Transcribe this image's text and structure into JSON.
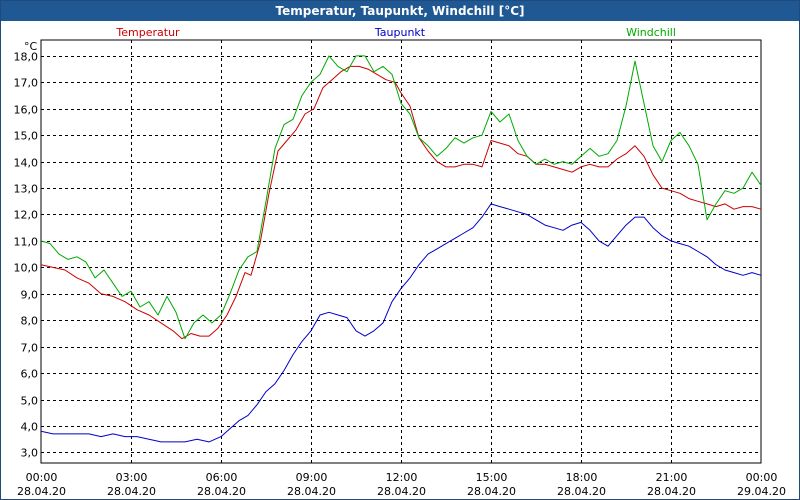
{
  "window": {
    "title": "Temperatur, Taupunkt, Windchill [°C]"
  },
  "chart_data": {
    "type": "line",
    "title": "Temperatur, Taupunkt, Windchill [°C]",
    "ylabel": "°C",
    "xlabel": "",
    "ylim": [
      2.6,
      18.6
    ],
    "xlim_hours": [
      0,
      24
    ],
    "grid": true,
    "legend_placement": "top",
    "y_ticks": [
      {
        "value": 3.0,
        "label": "3,0"
      },
      {
        "value": 4.0,
        "label": "4,0"
      },
      {
        "value": 5.0,
        "label": "5,0"
      },
      {
        "value": 6.0,
        "label": "6,0"
      },
      {
        "value": 7.0,
        "label": "7,0"
      },
      {
        "value": 8.0,
        "label": "8,0"
      },
      {
        "value": 9.0,
        "label": "9,0"
      },
      {
        "value": 10.0,
        "label": "10,0"
      },
      {
        "value": 11.0,
        "label": "11,0"
      },
      {
        "value": 12.0,
        "label": "12,0"
      },
      {
        "value": 13.0,
        "label": "13,0"
      },
      {
        "value": 14.0,
        "label": "14,0"
      },
      {
        "value": 15.0,
        "label": "15,0"
      },
      {
        "value": 16.0,
        "label": "16,0"
      },
      {
        "value": 17.0,
        "label": "17,0"
      },
      {
        "value": 18.0,
        "label": "18,0"
      }
    ],
    "x_ticks": [
      {
        "hour": 0,
        "time": "00:00",
        "date": "28.04.20"
      },
      {
        "hour": 3,
        "time": "03:00",
        "date": "28.04.20"
      },
      {
        "hour": 6,
        "time": "06:00",
        "date": "28.04.20"
      },
      {
        "hour": 9,
        "time": "09:00",
        "date": "28.04.20"
      },
      {
        "hour": 12,
        "time": "12:00",
        "date": "28.04.20"
      },
      {
        "hour": 15,
        "time": "15:00",
        "date": "28.04.20"
      },
      {
        "hour": 18,
        "time": "18:00",
        "date": "28.04.20"
      },
      {
        "hour": 21,
        "time": "21:00",
        "date": "28.04.20"
      },
      {
        "hour": 24,
        "time": "00:00",
        "date": "29.04.20"
      }
    ],
    "series": [
      {
        "name": "Temperatur",
        "color": "#cc0000",
        "points": [
          [
            0,
            10.1
          ],
          [
            0.4,
            10.0
          ],
          [
            0.8,
            9.9
          ],
          [
            1.2,
            9.6
          ],
          [
            1.6,
            9.4
          ],
          [
            2.0,
            9.0
          ],
          [
            2.4,
            8.9
          ],
          [
            2.8,
            8.7
          ],
          [
            3.2,
            8.4
          ],
          [
            3.6,
            8.2
          ],
          [
            4.0,
            7.9
          ],
          [
            4.4,
            7.6
          ],
          [
            4.7,
            7.3
          ],
          [
            5.0,
            7.5
          ],
          [
            5.3,
            7.4
          ],
          [
            5.6,
            7.4
          ],
          [
            5.9,
            7.7
          ],
          [
            6.2,
            8.2
          ],
          [
            6.5,
            8.9
          ],
          [
            6.8,
            9.8
          ],
          [
            7.0,
            9.7
          ],
          [
            7.3,
            10.9
          ],
          [
            7.6,
            12.8
          ],
          [
            7.9,
            14.4
          ],
          [
            8.2,
            14.8
          ],
          [
            8.5,
            15.2
          ],
          [
            8.8,
            15.8
          ],
          [
            9.1,
            16.0
          ],
          [
            9.4,
            16.8
          ],
          [
            9.7,
            17.1
          ],
          [
            10.0,
            17.4
          ],
          [
            10.3,
            17.6
          ],
          [
            10.6,
            17.6
          ],
          [
            10.9,
            17.5
          ],
          [
            11.2,
            17.3
          ],
          [
            11.5,
            17.1
          ],
          [
            11.8,
            17.0
          ],
          [
            12.0,
            16.6
          ],
          [
            12.3,
            16.1
          ],
          [
            12.6,
            14.9
          ],
          [
            12.9,
            14.4
          ],
          [
            13.2,
            14.0
          ],
          [
            13.5,
            13.8
          ],
          [
            13.8,
            13.8
          ],
          [
            14.1,
            13.9
          ],
          [
            14.4,
            13.9
          ],
          [
            14.7,
            13.8
          ],
          [
            15.0,
            14.8
          ],
          [
            15.3,
            14.7
          ],
          [
            15.6,
            14.6
          ],
          [
            15.9,
            14.3
          ],
          [
            16.2,
            14.2
          ],
          [
            16.5,
            13.9
          ],
          [
            16.8,
            13.9
          ],
          [
            17.1,
            13.8
          ],
          [
            17.4,
            13.7
          ],
          [
            17.7,
            13.6
          ],
          [
            18.0,
            13.8
          ],
          [
            18.3,
            13.9
          ],
          [
            18.6,
            13.8
          ],
          [
            18.9,
            13.8
          ],
          [
            19.2,
            14.1
          ],
          [
            19.5,
            14.3
          ],
          [
            19.8,
            14.6
          ],
          [
            20.1,
            14.2
          ],
          [
            20.4,
            13.5
          ],
          [
            20.7,
            13.0
          ],
          [
            21.0,
            12.9
          ],
          [
            21.3,
            12.8
          ],
          [
            21.6,
            12.6
          ],
          [
            21.9,
            12.5
          ],
          [
            22.2,
            12.4
          ],
          [
            22.5,
            12.3
          ],
          [
            22.8,
            12.4
          ],
          [
            23.1,
            12.2
          ],
          [
            23.4,
            12.3
          ],
          [
            23.7,
            12.3
          ],
          [
            24.0,
            12.2
          ]
        ]
      },
      {
        "name": "Taupunkt",
        "color": "#0000cc",
        "points": [
          [
            0,
            3.8
          ],
          [
            0.4,
            3.7
          ],
          [
            0.8,
            3.7
          ],
          [
            1.2,
            3.7
          ],
          [
            1.6,
            3.7
          ],
          [
            2.0,
            3.6
          ],
          [
            2.4,
            3.7
          ],
          [
            2.8,
            3.6
          ],
          [
            3.2,
            3.6
          ],
          [
            3.6,
            3.5
          ],
          [
            4.0,
            3.4
          ],
          [
            4.4,
            3.4
          ],
          [
            4.8,
            3.4
          ],
          [
            5.2,
            3.5
          ],
          [
            5.6,
            3.4
          ],
          [
            6.0,
            3.6
          ],
          [
            6.3,
            3.9
          ],
          [
            6.6,
            4.2
          ],
          [
            6.9,
            4.4
          ],
          [
            7.2,
            4.8
          ],
          [
            7.5,
            5.3
          ],
          [
            7.8,
            5.6
          ],
          [
            8.1,
            6.1
          ],
          [
            8.4,
            6.7
          ],
          [
            8.7,
            7.2
          ],
          [
            9.0,
            7.6
          ],
          [
            9.3,
            8.2
          ],
          [
            9.6,
            8.3
          ],
          [
            9.9,
            8.2
          ],
          [
            10.2,
            8.1
          ],
          [
            10.5,
            7.6
          ],
          [
            10.8,
            7.4
          ],
          [
            11.1,
            7.6
          ],
          [
            11.4,
            7.9
          ],
          [
            11.7,
            8.7
          ],
          [
            12.0,
            9.2
          ],
          [
            12.3,
            9.6
          ],
          [
            12.6,
            10.1
          ],
          [
            12.9,
            10.5
          ],
          [
            13.2,
            10.7
          ],
          [
            13.5,
            10.9
          ],
          [
            13.8,
            11.1
          ],
          [
            14.1,
            11.3
          ],
          [
            14.4,
            11.5
          ],
          [
            14.7,
            11.9
          ],
          [
            15.0,
            12.4
          ],
          [
            15.3,
            12.3
          ],
          [
            15.6,
            12.2
          ],
          [
            15.9,
            12.1
          ],
          [
            16.2,
            12.0
          ],
          [
            16.5,
            11.8
          ],
          [
            16.8,
            11.6
          ],
          [
            17.1,
            11.5
          ],
          [
            17.4,
            11.4
          ],
          [
            17.7,
            11.6
          ],
          [
            18.0,
            11.7
          ],
          [
            18.3,
            11.4
          ],
          [
            18.6,
            11.0
          ],
          [
            18.9,
            10.8
          ],
          [
            19.2,
            11.2
          ],
          [
            19.5,
            11.6
          ],
          [
            19.8,
            11.9
          ],
          [
            20.1,
            11.9
          ],
          [
            20.4,
            11.5
          ],
          [
            20.7,
            11.2
          ],
          [
            21.0,
            11.0
          ],
          [
            21.3,
            10.9
          ],
          [
            21.6,
            10.8
          ],
          [
            21.9,
            10.6
          ],
          [
            22.2,
            10.4
          ],
          [
            22.5,
            10.1
          ],
          [
            22.8,
            9.9
          ],
          [
            23.1,
            9.8
          ],
          [
            23.4,
            9.7
          ],
          [
            23.7,
            9.8
          ],
          [
            24.0,
            9.7
          ]
        ]
      },
      {
        "name": "Windchill",
        "color": "#00aa00",
        "points": [
          [
            0,
            11.0
          ],
          [
            0.3,
            10.9
          ],
          [
            0.6,
            10.5
          ],
          [
            0.9,
            10.3
          ],
          [
            1.2,
            10.4
          ],
          [
            1.5,
            10.2
          ],
          [
            1.8,
            9.6
          ],
          [
            2.1,
            9.9
          ],
          [
            2.4,
            9.4
          ],
          [
            2.7,
            8.9
          ],
          [
            3.0,
            9.1
          ],
          [
            3.3,
            8.5
          ],
          [
            3.6,
            8.7
          ],
          [
            3.9,
            8.2
          ],
          [
            4.2,
            8.9
          ],
          [
            4.5,
            8.3
          ],
          [
            4.8,
            7.3
          ],
          [
            5.1,
            7.9
          ],
          [
            5.4,
            8.2
          ],
          [
            5.7,
            7.9
          ],
          [
            6.0,
            8.2
          ],
          [
            6.3,
            9.0
          ],
          [
            6.6,
            9.9
          ],
          [
            6.9,
            10.4
          ],
          [
            7.2,
            10.6
          ],
          [
            7.5,
            12.5
          ],
          [
            7.8,
            14.5
          ],
          [
            8.1,
            15.4
          ],
          [
            8.4,
            15.6
          ],
          [
            8.7,
            16.5
          ],
          [
            9.0,
            17.0
          ],
          [
            9.3,
            17.3
          ],
          [
            9.6,
            18.0
          ],
          [
            9.9,
            17.6
          ],
          [
            10.2,
            17.4
          ],
          [
            10.5,
            18.0
          ],
          [
            10.8,
            18.0
          ],
          [
            11.1,
            17.4
          ],
          [
            11.4,
            17.6
          ],
          [
            11.7,
            17.3
          ],
          [
            12.0,
            16.2
          ],
          [
            12.3,
            15.8
          ],
          [
            12.6,
            14.9
          ],
          [
            12.9,
            14.6
          ],
          [
            13.2,
            14.2
          ],
          [
            13.5,
            14.5
          ],
          [
            13.8,
            14.9
          ],
          [
            14.1,
            14.7
          ],
          [
            14.4,
            14.9
          ],
          [
            14.7,
            15.0
          ],
          [
            15.0,
            15.9
          ],
          [
            15.3,
            15.5
          ],
          [
            15.6,
            15.8
          ],
          [
            15.9,
            14.8
          ],
          [
            16.2,
            14.2
          ],
          [
            16.5,
            13.9
          ],
          [
            16.8,
            14.1
          ],
          [
            17.1,
            13.9
          ],
          [
            17.4,
            14.0
          ],
          [
            17.7,
            13.9
          ],
          [
            18.0,
            14.2
          ],
          [
            18.3,
            14.5
          ],
          [
            18.6,
            14.2
          ],
          [
            18.9,
            14.3
          ],
          [
            19.2,
            14.8
          ],
          [
            19.5,
            16.1
          ],
          [
            19.8,
            17.8
          ],
          [
            20.1,
            16.2
          ],
          [
            20.4,
            14.6
          ],
          [
            20.7,
            14.0
          ],
          [
            21.0,
            14.8
          ],
          [
            21.3,
            15.1
          ],
          [
            21.6,
            14.6
          ],
          [
            21.9,
            13.9
          ],
          [
            22.2,
            11.8
          ],
          [
            22.5,
            12.4
          ],
          [
            22.8,
            12.9
          ],
          [
            23.1,
            12.8
          ],
          [
            23.4,
            13.0
          ],
          [
            23.7,
            13.6
          ],
          [
            24.0,
            13.1
          ]
        ]
      }
    ]
  }
}
